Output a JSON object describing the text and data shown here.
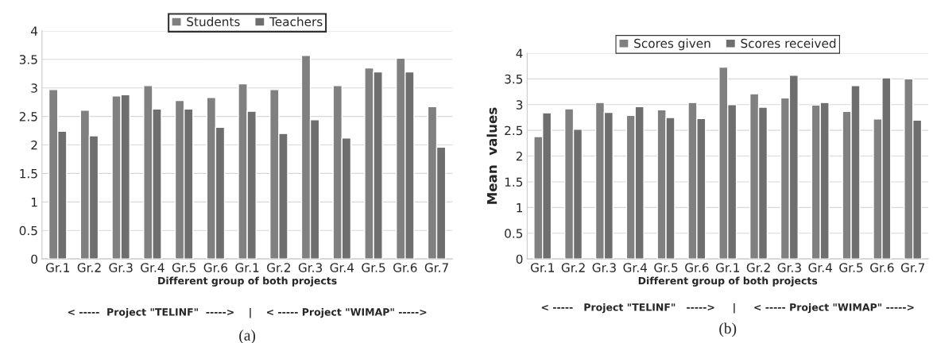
{
  "chart_data": [
    {
      "type": "bar",
      "categories": [
        "Gr.1",
        "Gr.2",
        "Gr.3",
        "Gr.4",
        "Gr.5",
        "Gr.6",
        "Gr.1",
        "Gr.2",
        "Gr.3",
        "Gr.4",
        "Gr.5",
        "Gr.6",
        "Gr.7"
      ],
      "xlabel": "Different group of both projects",
      "ylim": [
        0,
        4
      ],
      "yticks": [
        0,
        0.5,
        1,
        1.5,
        2,
        2.5,
        3,
        3.5,
        4
      ],
      "grid": "y",
      "legend": "top",
      "series": [
        {
          "name": "Students",
          "color": "#808080",
          "values": [
            2.97,
            2.61,
            2.86,
            3.04,
            2.78,
            2.83,
            3.07,
            2.97,
            3.57,
            3.04,
            3.35,
            3.52,
            2.67
          ]
        },
        {
          "name": "Teachers",
          "color": "#6e6e6e",
          "values": [
            2.24,
            2.16,
            2.88,
            2.63,
            2.63,
            2.31,
            2.59,
            2.2,
            2.44,
            2.12,
            3.28,
            3.28,
            1.96
          ]
        }
      ],
      "annotations": [
        "< -----  Project \"TELINF\"  ----->    |    < ----- Project \"WIMAP\" ----->",
        "(a)"
      ]
    },
    {
      "type": "bar",
      "categories": [
        "Gr.1",
        "Gr.2",
        "Gr.3",
        "Gr.4",
        "Gr.5",
        "Gr.6",
        "Gr.1",
        "Gr.2",
        "Gr.3",
        "Gr.4",
        "Gr.5",
        "Gr.6",
        "Gr.7"
      ],
      "xlabel": "Different group of both projects",
      "ylabel": "Mean  values",
      "ylim": [
        0,
        4
      ],
      "yticks": [
        0,
        0.5,
        1,
        1.5,
        2,
        2.5,
        3,
        3.5,
        4
      ],
      "grid": "y",
      "legend": "top",
      "series": [
        {
          "name": "Scores given",
          "color": "#808080",
          "values": [
            2.38,
            2.92,
            3.04,
            2.79,
            2.9,
            3.04,
            3.73,
            3.21,
            3.13,
            2.99,
            2.87,
            2.72,
            3.5
          ]
        },
        {
          "name": "Scores received",
          "color": "#6e6e6e",
          "values": [
            2.84,
            2.52,
            2.85,
            2.96,
            2.75,
            2.73,
            3.0,
            2.95,
            3.57,
            3.04,
            3.37,
            3.52,
            2.7
          ]
        }
      ],
      "annotations": [
        "< -----   Project \"TELINF\"   ----->     |     < ----- Project \"WIMAP\" ----->",
        "(b)"
      ]
    }
  ]
}
